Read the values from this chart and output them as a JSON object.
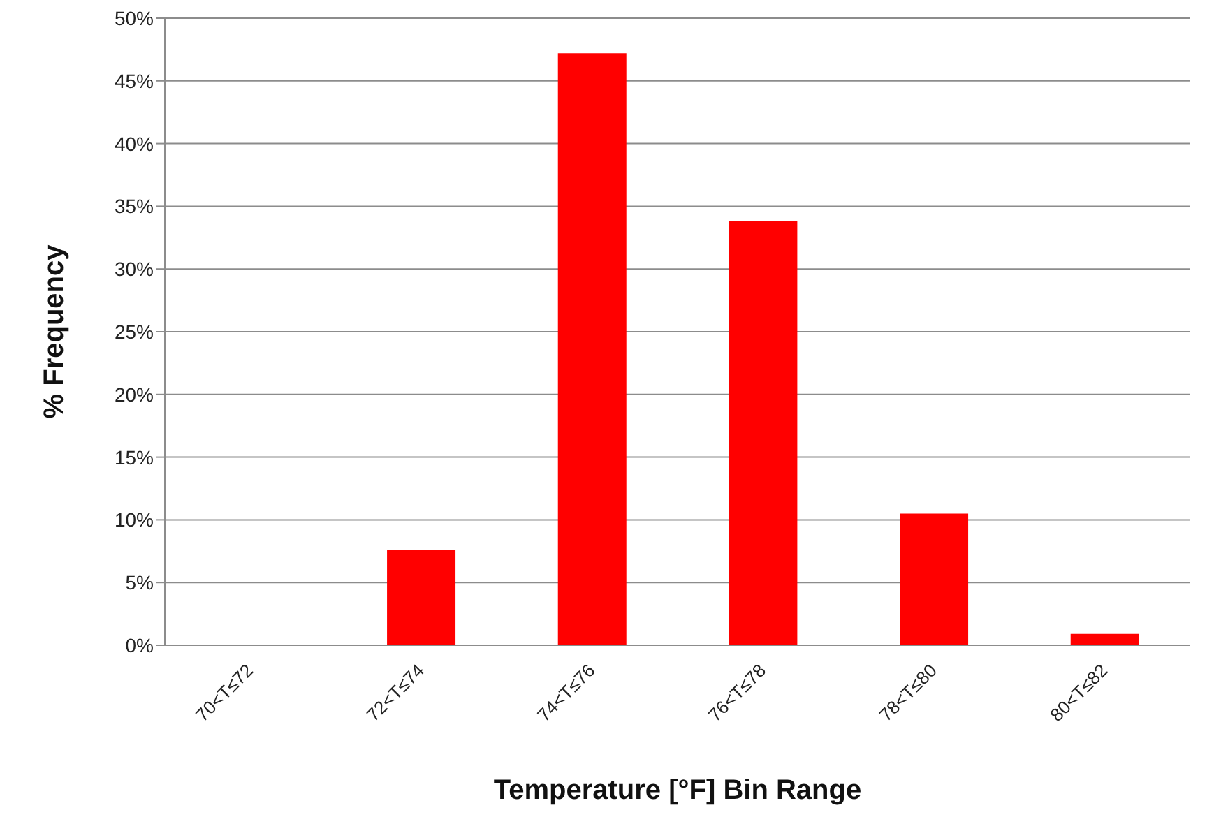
{
  "chart_data": {
    "type": "bar",
    "xlabel": "Temperature [°F] Bin Range",
    "ylabel": "% Frequency",
    "categories": [
      "70<T≤72",
      "72<T≤74",
      "74<T≤76",
      "76<T≤78",
      "78<T≤80",
      "80<T≤82"
    ],
    "values": [
      0,
      7.6,
      47.2,
      33.8,
      10.5,
      0.9
    ],
    "color": "#ff0000",
    "ylim": [
      0,
      50
    ],
    "yticks": [
      {
        "value": 0,
        "label": "0%"
      },
      {
        "value": 5,
        "label": "5%"
      },
      {
        "value": 10,
        "label": "10%"
      },
      {
        "value": 15,
        "label": "15%"
      },
      {
        "value": 20,
        "label": "20%"
      },
      {
        "value": 25,
        "label": "25%"
      },
      {
        "value": 30,
        "label": "30%"
      },
      {
        "value": 35,
        "label": "35%"
      },
      {
        "value": 40,
        "label": "40%"
      },
      {
        "value": 45,
        "label": "45%"
      },
      {
        "value": 50,
        "label": "50%"
      }
    ],
    "grid": "y"
  }
}
